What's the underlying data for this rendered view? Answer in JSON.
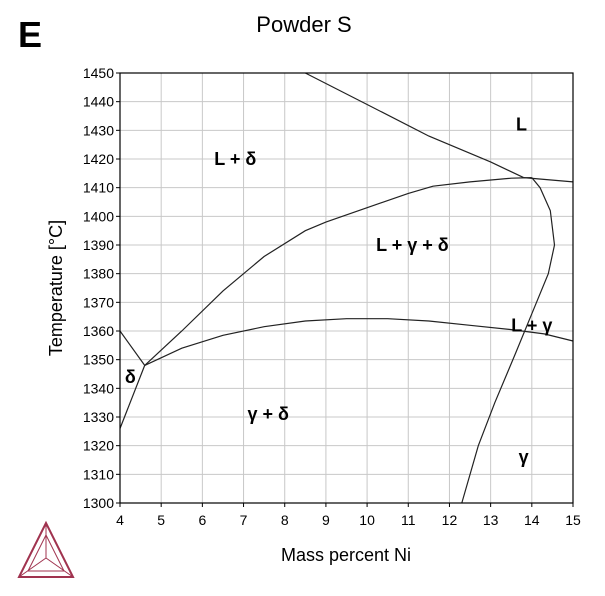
{
  "panel_label": "E",
  "chart_data": {
    "type": "line",
    "title": "Powder S",
    "xlabel": "Mass percent Ni",
    "ylabel": "Temperature [°C]",
    "xlim": [
      4,
      15
    ],
    "ylim": [
      1300,
      1450
    ],
    "xticks": [
      4,
      5,
      6,
      7,
      8,
      9,
      10,
      11,
      12,
      13,
      14,
      15
    ],
    "yticks": [
      1300,
      1310,
      1320,
      1330,
      1340,
      1350,
      1360,
      1370,
      1380,
      1390,
      1400,
      1410,
      1420,
      1430,
      1440,
      1450
    ],
    "grid": true,
    "series": [
      {
        "values": [
          [
            8.5,
            1450
          ],
          [
            10,
            1439
          ],
          [
            11.5,
            1428
          ],
          [
            13,
            1419
          ],
          [
            13.8,
            1413.5
          ]
        ]
      },
      {
        "values": [
          [
            13.8,
            1413.5
          ],
          [
            15,
            1412
          ]
        ]
      },
      {
        "values": [
          [
            4.6,
            1348
          ],
          [
            5.5,
            1360
          ],
          [
            6.5,
            1374
          ],
          [
            7.5,
            1386
          ],
          [
            8.5,
            1395
          ],
          [
            9,
            1398
          ],
          [
            10,
            1403
          ],
          [
            11,
            1408
          ],
          [
            11.6,
            1410.5
          ],
          [
            12.5,
            1412
          ],
          [
            13.5,
            1413.3
          ],
          [
            14.0,
            1413.5
          ]
        ]
      },
      {
        "values": [
          [
            14.0,
            1413.5
          ],
          [
            14.2,
            1410
          ],
          [
            14.45,
            1402
          ],
          [
            14.55,
            1390
          ],
          [
            14.4,
            1380
          ],
          [
            14.0,
            1366
          ],
          [
            13.6,
            1352
          ],
          [
            13.1,
            1335
          ],
          [
            12.7,
            1320
          ],
          [
            12.3,
            1300
          ]
        ]
      },
      {
        "values": [
          [
            4.6,
            1348
          ],
          [
            5.5,
            1354
          ],
          [
            6.5,
            1358.5
          ],
          [
            7.5,
            1361.5
          ],
          [
            8.5,
            1363.5
          ],
          [
            9.5,
            1364.3
          ],
          [
            10.5,
            1364.3
          ],
          [
            11.5,
            1363.5
          ],
          [
            12.5,
            1362
          ],
          [
            13.5,
            1360.5
          ],
          [
            14.3,
            1359
          ],
          [
            15,
            1356.5
          ]
        ]
      },
      {
        "values": [
          [
            4,
            1360
          ],
          [
            4.6,
            1348
          ]
        ]
      },
      {
        "values": [
          [
            4.6,
            1348
          ],
          [
            4.0,
            1326
          ]
        ]
      }
    ],
    "annotations": [
      {
        "text": "L",
        "x": 13.75,
        "y": 1432
      },
      {
        "text": "L + δ",
        "x": 6.8,
        "y": 1420
      },
      {
        "text": "L + γ + δ",
        "x": 11.1,
        "y": 1390
      },
      {
        "text": "L + γ",
        "x": 14.0,
        "y": 1362
      },
      {
        "text": "δ",
        "x": 4.25,
        "y": 1344
      },
      {
        "text": "γ + δ",
        "x": 7.6,
        "y": 1331
      },
      {
        "text": "γ",
        "x": 13.8,
        "y": 1316
      }
    ]
  },
  "logo": {
    "color": "#a0334f"
  }
}
